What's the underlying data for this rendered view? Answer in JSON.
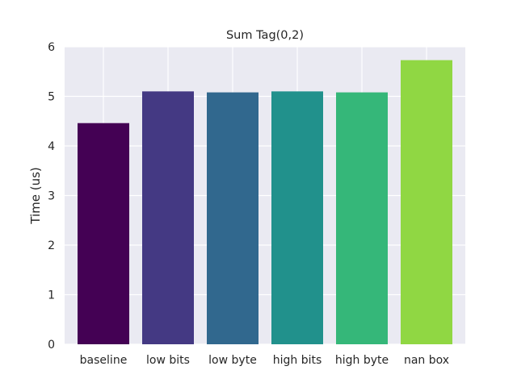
{
  "chart_data": {
    "type": "bar",
    "title": "Sum Tag(0,2)",
    "xlabel": "",
    "ylabel": "Time (us)",
    "categories": [
      "baseline",
      "low bits",
      "low byte",
      "high bits",
      "high byte",
      "nan box"
    ],
    "values": [
      4.46,
      5.1,
      5.08,
      5.1,
      5.08,
      5.73
    ],
    "colors": [
      "#440154",
      "#443983",
      "#31688e",
      "#21918c",
      "#35b779",
      "#90d743"
    ],
    "ylim": [
      0,
      6
    ],
    "yticks": [
      0,
      1,
      2,
      3,
      4,
      5,
      6
    ],
    "grid": true,
    "legend": "none",
    "background": "#eaeaf2",
    "grid_color": "#ffffff"
  }
}
